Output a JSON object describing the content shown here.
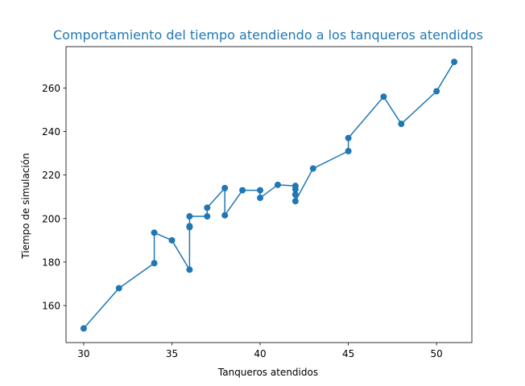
{
  "chart_data": {
    "type": "line",
    "title": "Comportamiento del tiempo atendiendo a los tanqueros atendidos",
    "title_color": "#1f77b4",
    "xlabel": "Tanqueros atendidos",
    "ylabel": "Tiempo de simulación",
    "xlim": [
      29.0,
      52.0
    ],
    "ylim": [
      143.0,
      279.0
    ],
    "xticks": [
      30,
      35,
      40,
      45,
      50
    ],
    "yticks": [
      160,
      180,
      200,
      220,
      240,
      260
    ],
    "grid": false,
    "series": [
      {
        "color": "#1f77b4",
        "marker": "circle",
        "x": [
          30,
          32,
          34,
          34,
          35,
          36,
          36,
          36,
          36,
          37,
          37,
          38,
          38,
          39,
          40,
          40,
          41,
          42,
          42,
          42,
          42,
          43,
          45,
          45,
          47,
          48,
          50,
          51
        ],
        "y": [
          149.5,
          168,
          179.5,
          193.5,
          190,
          176.5,
          196.5,
          196,
          201,
          201,
          205,
          214,
          201.5,
          213,
          213,
          209.5,
          215.5,
          215,
          213.5,
          211,
          208,
          223,
          231,
          237,
          256,
          243.5,
          258.5,
          272
        ]
      }
    ]
  }
}
